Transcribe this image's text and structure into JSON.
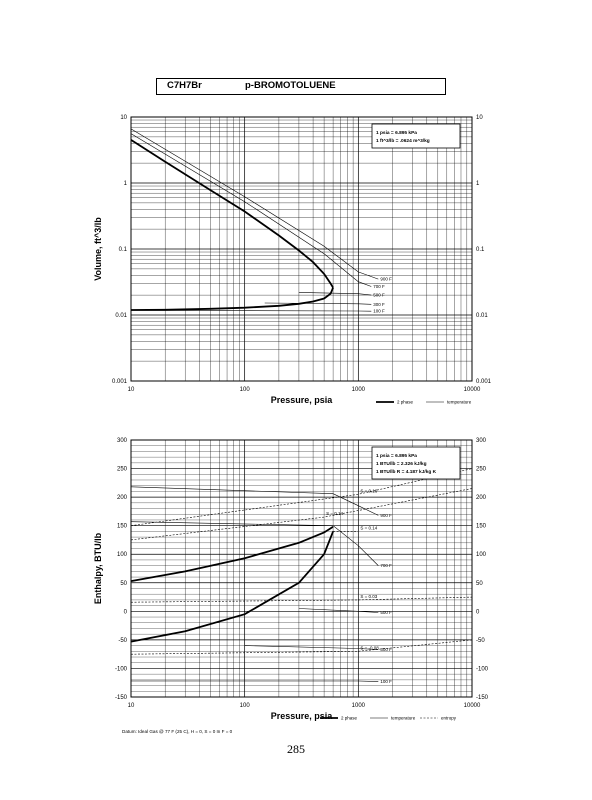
{
  "header": {
    "formula": "C7H7Br",
    "name": "p-BROMOTOLUENE"
  },
  "page_number": "285",
  "footnote": "Datum: Ideal Gas @ 77 F (25 C), H = 0, S = 0 In F = 0",
  "chart_data": [
    {
      "type": "line",
      "xlabel": "Pressure,  psia",
      "ylabel": "Volume, ft^3/lb",
      "x_scale": "log",
      "y_scale": "log",
      "xlim": [
        10,
        10000
      ],
      "ylim": [
        0.001,
        10
      ],
      "x_ticks": [
        "10",
        "100",
        "1000",
        "10000"
      ],
      "y_ticks_left": [
        "0.001",
        "0.01",
        "0.1",
        "1",
        "10"
      ],
      "y_ticks_right": [
        "0.001",
        "0.01",
        "0.1",
        "1",
        "10"
      ],
      "info_box": [
        "1 psia  =  6.895 kPa",
        "1 ft^3/lb  =  .0624 m^3/kg"
      ],
      "legend": [
        "2 phase",
        "temperature"
      ],
      "dome_vapor": {
        "x": [
          10,
          20,
          50,
          100,
          200,
          300,
          400,
          500,
          570,
          600
        ],
        "y": [
          4.5,
          2.1,
          0.78,
          0.37,
          0.16,
          0.095,
          0.063,
          0.042,
          0.03,
          0.026
        ]
      },
      "dome_liquid": {
        "x": [
          10,
          20,
          50,
          100,
          200,
          300,
          400,
          500,
          570,
          600
        ],
        "y": [
          0.0119,
          0.012,
          0.0124,
          0.0129,
          0.0138,
          0.0148,
          0.016,
          0.0178,
          0.021,
          0.026
        ]
      },
      "isotherms": [
        {
          "label": "900 F",
          "x": [
            10,
            100,
            500,
            1000,
            1500
          ],
          "y": [
            6.6,
            0.62,
            0.11,
            0.045,
            0.035
          ]
        },
        {
          "label": "700 F",
          "x": [
            10,
            100,
            500,
            1000,
            1300
          ],
          "y": [
            5.6,
            0.52,
            0.085,
            0.032,
            0.027
          ]
        },
        {
          "label": "500 F",
          "x": [
            300,
            1000,
            1300
          ],
          "y": [
            0.022,
            0.021,
            0.02
          ]
        },
        {
          "label": "300 F",
          "x": [
            150,
            1000,
            1300
          ],
          "y": [
            0.0152,
            0.0148,
            0.0145
          ]
        },
        {
          "label": "100 F",
          "x": [
            10,
            1000,
            1300
          ],
          "y": [
            0.0118,
            0.0115,
            0.0114
          ]
        }
      ]
    },
    {
      "type": "line",
      "xlabel": "Pressure,  psia",
      "ylabel": "Enthalpy, BTU/lb",
      "x_scale": "log",
      "y_scale": "linear",
      "xlim": [
        10,
        10000
      ],
      "ylim": [
        -150,
        300
      ],
      "x_ticks": [
        "10",
        "100",
        "1000",
        "10000"
      ],
      "y_ticks_left": [
        "-150",
        "-100",
        "-50",
        "0",
        "50",
        "100",
        "150",
        "200",
        "250",
        "300"
      ],
      "y_ticks_right": [
        "-150",
        "-100",
        "-50",
        "0",
        "50",
        "100",
        "150",
        "200",
        "250",
        "300"
      ],
      "info_box": [
        "1 psia  =  6.895 kPa",
        "1 BTU/lb  =  2.326 kJ/kg",
        "1 BTU/lb R  =  4.187 kJ/kg K"
      ],
      "legend": [
        "2 phase",
        "temperature",
        "entropy"
      ],
      "dome_vapor": {
        "x": [
          10,
          30,
          100,
          300,
          500,
          600
        ],
        "y": [
          53,
          70,
          93,
          120,
          138,
          148
        ]
      },
      "dome_liquid": {
        "x": [
          10,
          30,
          100,
          300,
          500,
          600
        ],
        "y": [
          -53,
          -35,
          -5,
          50,
          100,
          140
        ]
      },
      "isotherms": [
        {
          "label": "900 F",
          "x": [
            10,
            600,
            1000,
            1500
          ],
          "y": [
            218,
            206,
            185,
            168
          ]
        },
        {
          "label": "700 F",
          "x": [
            10,
            600,
            1000,
            1500
          ],
          "y": [
            157,
            150,
            115,
            80
          ]
        },
        {
          "label": "500 F",
          "x": [
            300,
            1000,
            1500
          ],
          "y": [
            5,
            0,
            -2
          ]
        },
        {
          "label": "300 F",
          "x": [
            100,
            1000,
            1500
          ],
          "y": [
            -60,
            -65,
            -67
          ]
        },
        {
          "label": "100 F",
          "x": [
            10,
            1000,
            1500
          ],
          "y": [
            -122,
            -122,
            -123
          ]
        }
      ],
      "isentropes": [
        {
          "label": "S = 0.16",
          "x": [
            10,
            1000,
            10000
          ],
          "y": [
            150,
            205,
            250
          ]
        },
        {
          "label": "S = 0.14",
          "x": [
            10,
            500,
            10000
          ],
          "y": [
            125,
            165,
            215
          ]
        },
        {
          "label": "S = 0.14",
          "x": [
            600,
            1000
          ],
          "y": [
            140,
            140
          ]
        },
        {
          "label": "S = 0.03",
          "x": [
            10,
            1000,
            10000
          ],
          "y": [
            16,
            20,
            25
          ]
        },
        {
          "label": "S = -0.08",
          "x": [
            10,
            1000,
            10000
          ],
          "y": [
            -75,
            -70,
            -50
          ]
        }
      ]
    }
  ]
}
